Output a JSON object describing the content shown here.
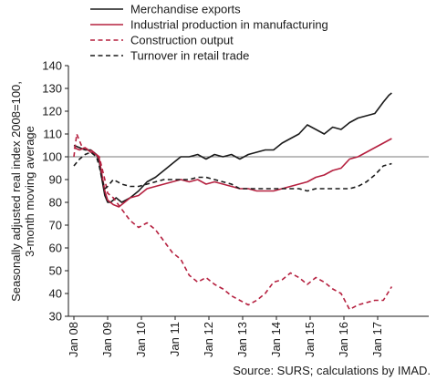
{
  "chart_data": {
    "type": "line",
    "ylabel": "Seasonally adjusted real index 2008=100, 3-month moving average",
    "ylim": [
      30,
      140
    ],
    "yticks": [
      30,
      40,
      50,
      60,
      70,
      80,
      90,
      100,
      110,
      120,
      130,
      140
    ],
    "x_range": [
      "2008-01",
      "2017-06"
    ],
    "xticks": [
      "Jan 08",
      "Jan 09",
      "Jan 10",
      "Jan 11",
      "Jan 12",
      "Jan 13",
      "Jan 14",
      "Jan 15",
      "Jan 16",
      "Jan 17"
    ],
    "reference_line": 100,
    "grid": false,
    "legend_position": "top-left",
    "source": "Source: SURS; calculations by IMAD.",
    "series": [
      {
        "name": "Merchandise exports",
        "color": "#1a1a1a",
        "dash": "solid",
        "points": [
          [
            "2008-01",
            105
          ],
          [
            "2008-03",
            104
          ],
          [
            "2008-05",
            103
          ],
          [
            "2008-07",
            103
          ],
          [
            "2008-09",
            101
          ],
          [
            "2008-10",
            98
          ],
          [
            "2008-11",
            90
          ],
          [
            "2008-12",
            83
          ],
          [
            "2009-01",
            80
          ],
          [
            "2009-02",
            80
          ],
          [
            "2009-04",
            82
          ],
          [
            "2009-06",
            80
          ],
          [
            "2009-09",
            82
          ],
          [
            "2009-12",
            85
          ],
          [
            "2010-03",
            89
          ],
          [
            "2010-06",
            91
          ],
          [
            "2010-09",
            94
          ],
          [
            "2010-12",
            97
          ],
          [
            "2011-03",
            100
          ],
          [
            "2011-06",
            100
          ],
          [
            "2011-09",
            101
          ],
          [
            "2011-12",
            99
          ],
          [
            "2012-03",
            101
          ],
          [
            "2012-06",
            100
          ],
          [
            "2012-09",
            101
          ],
          [
            "2012-12",
            99
          ],
          [
            "2013-03",
            101
          ],
          [
            "2013-06",
            102
          ],
          [
            "2013-09",
            103
          ],
          [
            "2013-12",
            103
          ],
          [
            "2014-03",
            106
          ],
          [
            "2014-06",
            108
          ],
          [
            "2014-09",
            110
          ],
          [
            "2014-12",
            114
          ],
          [
            "2015-03",
            112
          ],
          [
            "2015-06",
            110
          ],
          [
            "2015-09",
            113
          ],
          [
            "2015-12",
            112
          ],
          [
            "2016-03",
            115
          ],
          [
            "2016-06",
            117
          ],
          [
            "2016-09",
            118
          ],
          [
            "2016-12",
            119
          ],
          [
            "2017-03",
            124
          ],
          [
            "2017-05",
            127
          ],
          [
            "2017-06",
            128
          ]
        ]
      },
      {
        "name": "Industrial production in manufacturing",
        "color": "#b5203f",
        "dash": "solid",
        "points": [
          [
            "2008-01",
            104
          ],
          [
            "2008-03",
            103
          ],
          [
            "2008-05",
            104
          ],
          [
            "2008-07",
            102
          ],
          [
            "2008-09",
            101
          ],
          [
            "2008-10",
            99
          ],
          [
            "2008-11",
            92
          ],
          [
            "2008-12",
            85
          ],
          [
            "2009-01",
            81
          ],
          [
            "2009-03",
            79
          ],
          [
            "2009-05",
            78
          ],
          [
            "2009-07",
            80
          ],
          [
            "2009-09",
            82
          ],
          [
            "2009-12",
            83
          ],
          [
            "2010-03",
            86
          ],
          [
            "2010-06",
            87
          ],
          [
            "2010-09",
            88
          ],
          [
            "2010-12",
            89
          ],
          [
            "2011-03",
            90
          ],
          [
            "2011-06",
            89
          ],
          [
            "2011-09",
            90
          ],
          [
            "2011-12",
            88
          ],
          [
            "2012-03",
            89
          ],
          [
            "2012-06",
            88
          ],
          [
            "2012-09",
            87
          ],
          [
            "2012-12",
            86
          ],
          [
            "2013-03",
            86
          ],
          [
            "2013-06",
            85
          ],
          [
            "2013-09",
            85
          ],
          [
            "2013-12",
            85
          ],
          [
            "2014-03",
            86
          ],
          [
            "2014-06",
            87
          ],
          [
            "2014-09",
            88
          ],
          [
            "2014-12",
            89
          ],
          [
            "2015-03",
            91
          ],
          [
            "2015-06",
            92
          ],
          [
            "2015-09",
            94
          ],
          [
            "2015-12",
            95
          ],
          [
            "2016-03",
            99
          ],
          [
            "2016-06",
            100
          ],
          [
            "2016-09",
            102
          ],
          [
            "2016-12",
            104
          ],
          [
            "2017-03",
            106
          ],
          [
            "2017-06",
            108
          ]
        ]
      },
      {
        "name": "Construction output",
        "color": "#b5203f",
        "dash": "dashed",
        "points": [
          [
            "2008-01",
            100
          ],
          [
            "2008-02",
            110
          ],
          [
            "2008-04",
            104
          ],
          [
            "2008-07",
            103
          ],
          [
            "2008-10",
            100
          ],
          [
            "2008-12",
            90
          ],
          [
            "2009-01",
            84
          ],
          [
            "2009-03",
            82
          ],
          [
            "2009-06",
            77
          ],
          [
            "2009-09",
            72
          ],
          [
            "2009-12",
            69
          ],
          [
            "2010-03",
            71
          ],
          [
            "2010-06",
            68
          ],
          [
            "2010-09",
            63
          ],
          [
            "2010-12",
            58
          ],
          [
            "2011-03",
            55
          ],
          [
            "2011-06",
            48
          ],
          [
            "2011-09",
            45
          ],
          [
            "2011-12",
            47
          ],
          [
            "2012-03",
            44
          ],
          [
            "2012-06",
            42
          ],
          [
            "2012-09",
            39
          ],
          [
            "2012-12",
            37
          ],
          [
            "2013-03",
            35
          ],
          [
            "2013-06",
            37
          ],
          [
            "2013-09",
            40
          ],
          [
            "2013-12",
            45
          ],
          [
            "2014-03",
            46
          ],
          [
            "2014-06",
            49
          ],
          [
            "2014-09",
            47
          ],
          [
            "2014-12",
            44
          ],
          [
            "2015-03",
            47
          ],
          [
            "2015-06",
            45
          ],
          [
            "2015-09",
            42
          ],
          [
            "2015-12",
            40
          ],
          [
            "2016-03",
            33
          ],
          [
            "2016-06",
            35
          ],
          [
            "2016-09",
            36
          ],
          [
            "2016-12",
            37
          ],
          [
            "2017-03",
            37
          ],
          [
            "2017-06",
            43
          ]
        ]
      },
      {
        "name": "Turnover in retail trade",
        "color": "#1a1a1a",
        "dash": "dashed",
        "points": [
          [
            "2008-01",
            96
          ],
          [
            "2008-03",
            99
          ],
          [
            "2008-05",
            101
          ],
          [
            "2008-07",
            102
          ],
          [
            "2008-09",
            100
          ],
          [
            "2008-10",
            96
          ],
          [
            "2008-11",
            90
          ],
          [
            "2008-12",
            86
          ],
          [
            "2009-01",
            87
          ],
          [
            "2009-03",
            90
          ],
          [
            "2009-06",
            88
          ],
          [
            "2009-09",
            87
          ],
          [
            "2009-12",
            87
          ],
          [
            "2010-03",
            88
          ],
          [
            "2010-06",
            89
          ],
          [
            "2010-09",
            90
          ],
          [
            "2010-12",
            90
          ],
          [
            "2011-03",
            90
          ],
          [
            "2011-06",
            90
          ],
          [
            "2011-09",
            91
          ],
          [
            "2011-12",
            91
          ],
          [
            "2012-03",
            90
          ],
          [
            "2012-06",
            89
          ],
          [
            "2012-09",
            88
          ],
          [
            "2012-12",
            86
          ],
          [
            "2013-03",
            86
          ],
          [
            "2013-06",
            86
          ],
          [
            "2013-09",
            86
          ],
          [
            "2013-12",
            86
          ],
          [
            "2014-03",
            86
          ],
          [
            "2014-06",
            86
          ],
          [
            "2014-09",
            86
          ],
          [
            "2014-12",
            85
          ],
          [
            "2015-03",
            86
          ],
          [
            "2015-06",
            86
          ],
          [
            "2015-09",
            86
          ],
          [
            "2015-12",
            86
          ],
          [
            "2016-03",
            86
          ],
          [
            "2016-06",
            87
          ],
          [
            "2016-09",
            89
          ],
          [
            "2016-12",
            92
          ],
          [
            "2017-03",
            96
          ],
          [
            "2017-06",
            97
          ]
        ]
      }
    ]
  }
}
